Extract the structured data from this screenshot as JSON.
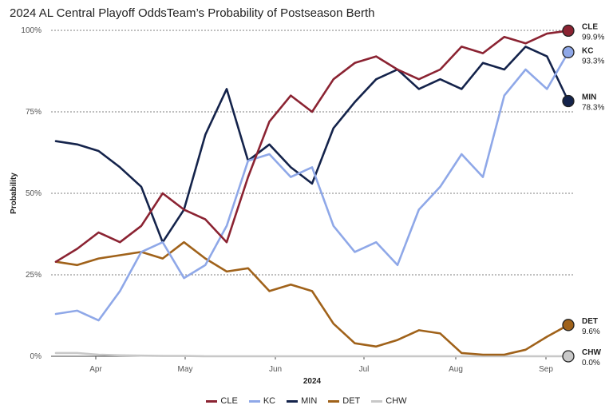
{
  "title": "2024 AL Central Playoff OddsTeam’s Probability of Postseason Berth",
  "chart_data": {
    "type": "line",
    "ylabel": "Probability",
    "xlabel": "2024",
    "ylim": [
      0,
      100
    ],
    "yticks": [
      "0%",
      "25%",
      "50%",
      "75%",
      "100%"
    ],
    "xticks": [
      "Apr",
      "May",
      "Jun",
      "Jul",
      "Aug",
      "Sep"
    ],
    "x": [
      "Mar 28",
      "Apr 4",
      "Apr 11",
      "Apr 18",
      "Apr 25",
      "May 2",
      "May 9",
      "May 16",
      "May 23",
      "May 30",
      "Jun 6",
      "Jun 13",
      "Jun 20",
      "Jun 27",
      "Jul 4",
      "Jul 11",
      "Jul 18",
      "Jul 25",
      "Aug 1",
      "Aug 8",
      "Aug 15",
      "Aug 22",
      "Aug 29",
      "Sep 5",
      "Sep 9"
    ],
    "series": [
      {
        "name": "CLE",
        "color": "#8b2332",
        "values": [
          29,
          33,
          38,
          35,
          40,
          50,
          45,
          42,
          35,
          55,
          72,
          80,
          75,
          85,
          90,
          92,
          88,
          85,
          88,
          95,
          93,
          98,
          96,
          99,
          99.9
        ]
      },
      {
        "name": "KC",
        "color": "#8fa8e8",
        "values": [
          13,
          14,
          11,
          20,
          32,
          35,
          24,
          28,
          40,
          60,
          62,
          55,
          58,
          40,
          32,
          35,
          28,
          45,
          52,
          62,
          55,
          80,
          88,
          82,
          93.3
        ]
      },
      {
        "name": "MIN",
        "color": "#14234b",
        "values": [
          66,
          65,
          63,
          58,
          52,
          35,
          45,
          68,
          82,
          60,
          65,
          58,
          53,
          70,
          78,
          85,
          88,
          82,
          85,
          82,
          90,
          88,
          95,
          92,
          78.3
        ]
      },
      {
        "name": "DET",
        "color": "#a0621a",
        "values": [
          29,
          28,
          30,
          31,
          32,
          30,
          35,
          30,
          26,
          27,
          20,
          22,
          20,
          10,
          4,
          3,
          5,
          8,
          7,
          1,
          0.5,
          0.5,
          2,
          6,
          9.6
        ]
      },
      {
        "name": "CHW",
        "color": "#c8c8c8",
        "values": [
          1,
          1,
          0.5,
          0.3,
          0.2,
          0.1,
          0.1,
          0,
          0,
          0,
          0,
          0,
          0,
          0,
          0,
          0,
          0,
          0,
          0,
          0,
          0,
          0,
          0,
          0,
          0
        ]
      }
    ],
    "end_labels": [
      {
        "team": "CLE",
        "value": "99.9%"
      },
      {
        "team": "KC",
        "value": "93.3%"
      },
      {
        "team": "MIN",
        "value": "78.3%"
      },
      {
        "team": "DET",
        "value": "9.6%"
      },
      {
        "team": "CHW",
        "value": "0.0%"
      }
    ],
    "legend_position": "bottom"
  }
}
